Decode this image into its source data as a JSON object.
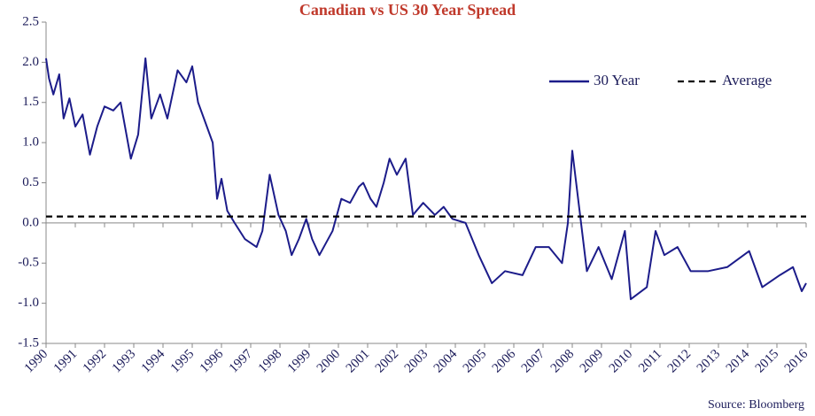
{
  "chart_data": {
    "type": "line",
    "title": "Canadian vs US 30 Year Spread",
    "source": "Source: Bloomberg",
    "xlim": [
      1990,
      2016
    ],
    "xticks": [
      1990,
      1991,
      1992,
      1993,
      1994,
      1995,
      1996,
      1997,
      1998,
      1999,
      2000,
      2001,
      2002,
      2003,
      2004,
      2005,
      2006,
      2007,
      2008,
      2009,
      2010,
      2011,
      2012,
      2013,
      2014,
      2015,
      2016
    ],
    "ylim": [
      -1.5,
      2.5
    ],
    "yticks": [
      -1.5,
      {
        "value": -1,
        "label": "-1.0"
      },
      -0.5,
      {
        "value": 0,
        "label": "0.0"
      },
      0.5,
      {
        "value": 1,
        "label": "1.0"
      },
      1.5,
      {
        "value": 2,
        "label": "2.0"
      },
      2.5
    ],
    "legend": "top-right",
    "series": [
      {
        "name": "30 Year",
        "color": "#1c1c8a",
        "dash": "solid",
        "x": [
          1990.0,
          1990.1,
          1990.25,
          1990.45,
          1990.6,
          1990.8,
          1991.0,
          1991.25,
          1991.5,
          1991.75,
          1992.0,
          1992.3,
          1992.55,
          1992.9,
          1993.15,
          1993.4,
          1993.6,
          1993.9,
          1994.15,
          1994.5,
          1994.8,
          1995.0,
          1995.2,
          1995.4,
          1995.7,
          1995.85,
          1996.0,
          1996.2,
          1996.45,
          1996.8,
          1997.2,
          1997.4,
          1997.65,
          1997.95,
          1998.2,
          1998.4,
          1998.65,
          1998.9,
          1999.1,
          1999.35,
          1999.8,
          2000.1,
          2000.4,
          2000.7,
          2000.85,
          2001.1,
          2001.3,
          2001.55,
          2001.75,
          2002.0,
          2002.3,
          2002.55,
          2002.9,
          2003.3,
          2003.6,
          2003.9,
          2004.35,
          2004.8,
          2005.25,
          2005.7,
          2006.3,
          2006.75,
          2007.2,
          2007.65,
          2007.85,
          2008.0,
          2008.3,
          2008.5,
          2008.9,
          2009.35,
          2009.8,
          2010.0,
          2010.55,
          2010.85,
          2011.15,
          2011.6,
          2012.05,
          2012.65,
          2013.3,
          2014.05,
          2014.5,
          2015.1,
          2015.55,
          2015.85,
          2016.0
        ],
        "values": [
          2.05,
          1.8,
          1.6,
          1.85,
          1.3,
          1.55,
          1.2,
          1.35,
          0.85,
          1.2,
          1.45,
          1.4,
          1.5,
          0.8,
          1.1,
          2.05,
          1.3,
          1.6,
          1.3,
          1.9,
          1.75,
          1.95,
          1.5,
          1.3,
          1.0,
          0.3,
          0.55,
          0.15,
          0.0,
          -0.2,
          -0.3,
          -0.1,
          0.6,
          0.1,
          -0.1,
          -0.4,
          -0.2,
          0.05,
          -0.2,
          -0.4,
          -0.1,
          0.3,
          0.25,
          0.45,
          0.5,
          0.3,
          0.2,
          0.5,
          0.8,
          0.6,
          0.8,
          0.1,
          0.25,
          0.1,
          0.2,
          0.05,
          0.0,
          -0.4,
          -0.75,
          -0.6,
          -0.65,
          -0.3,
          -0.3,
          -0.5,
          0.0,
          0.9,
          0.0,
          -0.6,
          -0.3,
          -0.7,
          -0.1,
          -0.95,
          -0.8,
          -0.1,
          -0.4,
          -0.3,
          -0.6,
          -0.6,
          -0.55,
          -0.35,
          -0.8,
          -0.65,
          -0.55,
          -0.85,
          -0.75
        ]
      },
      {
        "name": "Average",
        "color": "#000000",
        "dash": "dashed",
        "x": [
          1990,
          2016
        ],
        "values": [
          0.08,
          0.08
        ]
      }
    ]
  }
}
